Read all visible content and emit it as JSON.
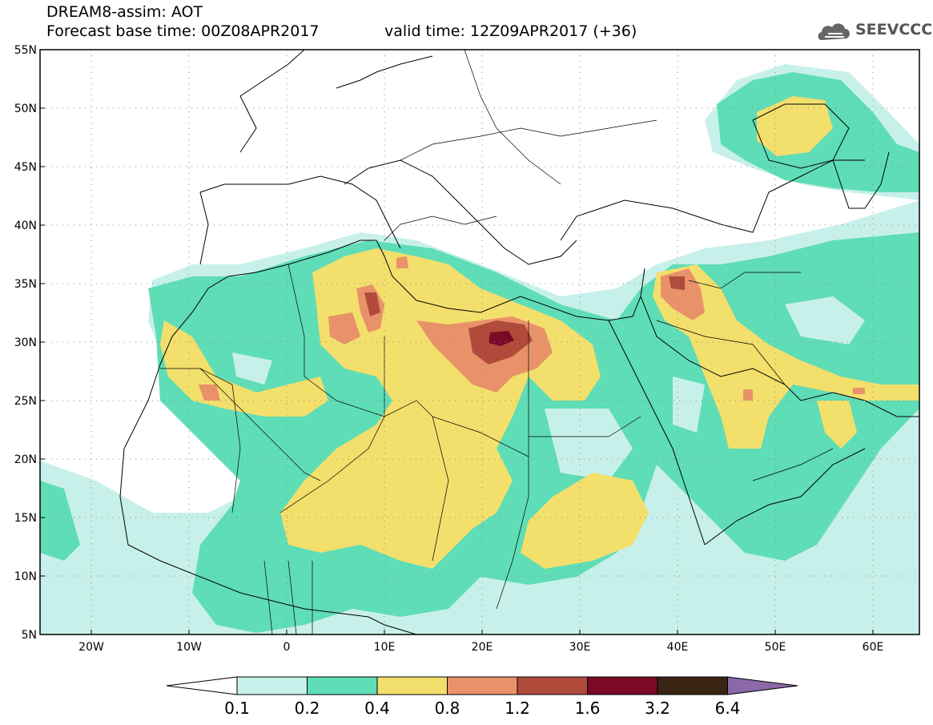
{
  "header": {
    "line1": "DREAM8-assim: AOT",
    "line2": "Forecast base time: 00Z08APR2017",
    "valid": "valid time: 12Z09APR2017 (+36)",
    "logo_text": "SEEVCCC"
  },
  "axes": {
    "lat_labels": [
      "55N",
      "50N",
      "45N",
      "40N",
      "35N",
      "30N",
      "25N",
      "20N",
      "15N",
      "10N",
      "5N"
    ],
    "lon_labels": [
      "20W",
      "10W",
      "0",
      "10E",
      "20E",
      "30E",
      "40E",
      "50E",
      "60E"
    ]
  },
  "colorbar": {
    "labels": [
      "0.1",
      "0.2",
      "0.4",
      "0.8",
      "1.2",
      "1.6",
      "3.2",
      "6.4"
    ],
    "colors": [
      "#c8f0ea",
      "#5fddb6",
      "#f3df6c",
      "#e9926a",
      "#b04b3c",
      "#7a0a26",
      "#3a2414",
      "#8b68a8"
    ]
  },
  "map": {
    "region": "North Africa, Middle East, Europe",
    "variable": "AOT",
    "lon_range": [
      -25,
      65
    ],
    "lat_range": [
      5,
      55
    ]
  }
}
